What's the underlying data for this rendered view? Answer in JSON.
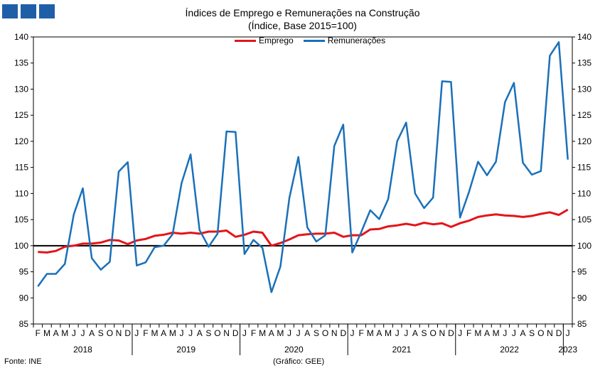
{
  "title": "Índices de Emprego e Remunerações na Construção",
  "subtitle": "(Índice, Base 2015=100)",
  "source": "Fonte: INE",
  "credit": "(Gráfico: GEE)",
  "colors": {
    "emprego": "#e3151a",
    "remuneracoes": "#1a70b8",
    "baseline": "#000000",
    "logo": "#1f5fa8"
  },
  "chart_data": {
    "type": "line",
    "title": "Índices de Emprego e Remunerações na Construção",
    "subtitle": "(Índice, Base 2015=100)",
    "ylim": [
      85,
      140
    ],
    "y_ticks": [
      85,
      90,
      95,
      100,
      105,
      110,
      115,
      120,
      125,
      130,
      135,
      140
    ],
    "y_axis_both_sides": true,
    "reference_line": 100,
    "legend_position": "top-center",
    "grid": false,
    "month_labels": [
      "F",
      "M",
      "A",
      "M",
      "J",
      "J",
      "A",
      "S",
      "O",
      "N",
      "D",
      "J",
      "F",
      "M",
      "A",
      "M",
      "J",
      "J",
      "A",
      "S",
      "O",
      "N",
      "D",
      "J",
      "F",
      "M",
      "A",
      "M",
      "J",
      "J",
      "A",
      "S",
      "O",
      "N",
      "D",
      "J",
      "F",
      "M",
      "A",
      "M",
      "J",
      "J",
      "A",
      "S",
      "O",
      "N",
      "D",
      "J",
      "F",
      "M",
      "A",
      "M",
      "J",
      "J",
      "A",
      "S",
      "O",
      "N",
      "D",
      "J"
    ],
    "year_labels": [
      {
        "label": "2018",
        "start": 0,
        "end": 10
      },
      {
        "label": "2019",
        "start": 11,
        "end": 22
      },
      {
        "label": "2020",
        "start": 23,
        "end": 34
      },
      {
        "label": "2021",
        "start": 35,
        "end": 46
      },
      {
        "label": "2022",
        "start": 47,
        "end": 58
      },
      {
        "label": "2023",
        "start": 59,
        "end": 59
      }
    ],
    "series": [
      {
        "name": "Emprego",
        "values": [
          98.8,
          98.7,
          99.0,
          99.8,
          100.0,
          100.4,
          100.4,
          100.6,
          101.1,
          101.0,
          100.3,
          101.0,
          101.3,
          101.9,
          102.1,
          102.5,
          102.3,
          102.5,
          102.3,
          102.7,
          102.7,
          102.9,
          101.7,
          102.1,
          102.7,
          102.5,
          100.0,
          100.5,
          101.2,
          102.0,
          102.2,
          102.3,
          102.3,
          102.5,
          101.7,
          102.0,
          102.0,
          103.1,
          103.2,
          103.7,
          103.9,
          104.2,
          103.9,
          104.4,
          104.1,
          104.3,
          103.6,
          104.3,
          104.8,
          105.5,
          105.8,
          106.0,
          105.8,
          105.7,
          105.5,
          105.7,
          106.1,
          106.4,
          105.9,
          106.9
        ]
      },
      {
        "name": "Remunerações",
        "values": [
          92.2,
          94.6,
          94.6,
          96.5,
          106.0,
          111.0,
          97.6,
          95.4,
          96.9,
          114.2,
          116.0,
          96.2,
          96.8,
          99.7,
          100.0,
          102.2,
          112.0,
          117.5,
          103.0,
          99.8,
          102.3,
          121.9,
          121.8,
          98.4,
          101.1,
          99.6,
          91.1,
          96.0,
          109.2,
          117.0,
          103.5,
          100.8,
          102.0,
          119.1,
          123.2,
          98.7,
          102.6,
          106.8,
          105.1,
          108.9,
          120.0,
          123.6,
          110.0,
          107.2,
          109.2,
          131.5,
          131.4,
          105.4,
          110.3,
          116.1,
          113.5,
          116.1,
          127.5,
          131.2,
          115.9,
          113.6,
          114.3,
          136.4,
          139.0,
          116.5
        ]
      }
    ]
  }
}
